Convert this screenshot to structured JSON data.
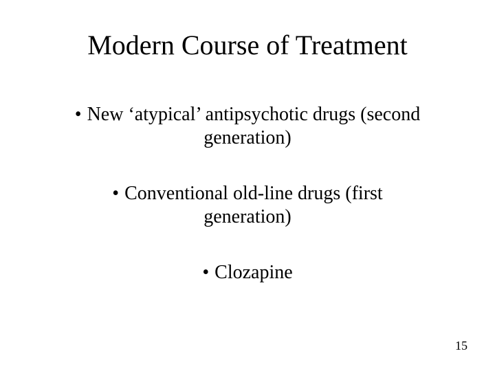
{
  "slide": {
    "title": "Modern Course of Treatment",
    "bullets": [
      {
        "marker": "•",
        "line1": "New ‘atypical’ antipsychotic drugs (second",
        "line2": "generation)"
      },
      {
        "marker": "•",
        "line1": "Conventional old-line drugs (first",
        "line2": "generation)"
      },
      {
        "marker": "•",
        "line1": "Clozapine",
        "line2": ""
      }
    ],
    "page_number": "15",
    "colors": {
      "background": "#ffffff",
      "text": "#000000"
    },
    "typography": {
      "title_fontsize_pt": 40,
      "body_fontsize_pt": 28,
      "pagenum_fontsize_pt": 18,
      "font_family": "Times New Roman"
    }
  }
}
